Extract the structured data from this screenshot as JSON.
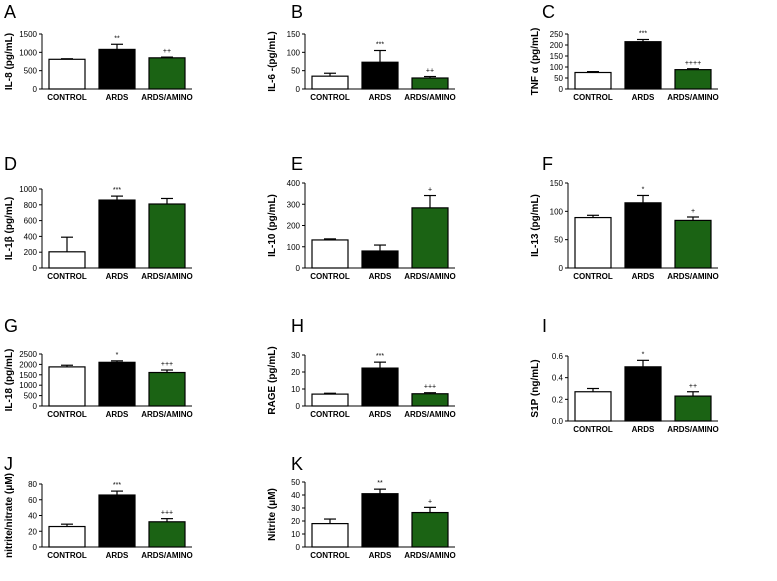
{
  "figure": {
    "title": ""
  },
  "colors": {
    "control": "#ffffff",
    "ards": "#000000",
    "amino": "#1b6314",
    "stroke": "#000000"
  },
  "chart_data": [
    {
      "type": "bar",
      "panel": "A",
      "title": "",
      "ylabel": "IL-8 (pg/mL)",
      "xlabel": "",
      "categories": [
        "CONTROL",
        "ARDS",
        "ARDS/AMINO"
      ],
      "values": [
        810,
        1080,
        850
      ],
      "errors": [
        15,
        140,
        20
      ],
      "significance": [
        "",
        "**",
        "++"
      ],
      "ylim": [
        0,
        1500
      ],
      "yticks": [
        0,
        500,
        1000,
        1500
      ],
      "ytick_labels": [
        "0",
        "500",
        "1000",
        "1500"
      ]
    },
    {
      "type": "bar",
      "panel": "B",
      "title": "",
      "ylabel": "IL-6 -(pg/mL)",
      "xlabel": "",
      "categories": [
        "CONTROL",
        "ARDS",
        "ARDS/AMINO"
      ],
      "values": [
        35,
        73,
        30
      ],
      "errors": [
        8,
        32,
        4
      ],
      "significance": [
        "",
        "***",
        "++"
      ],
      "ylim": [
        0,
        150
      ],
      "yticks": [
        0,
        50,
        100,
        150
      ],
      "ytick_labels": [
        "0",
        "50",
        "100",
        "150"
      ]
    },
    {
      "type": "bar",
      "panel": "C",
      "title": "",
      "ylabel": "TNF α (pg/mL)",
      "xlabel": "",
      "categories": [
        "CONTROL",
        "ARDS",
        "ARDS/AMINO"
      ],
      "values": [
        75,
        215,
        88
      ],
      "errors": [
        4,
        10,
        4
      ],
      "significance": [
        "",
        "***",
        "++++"
      ],
      "ylim": [
        0,
        250
      ],
      "yticks": [
        0,
        50,
        100,
        150,
        200,
        250
      ],
      "ytick_labels": [
        "0",
        "50",
        "100",
        "150",
        "200",
        "250"
      ]
    },
    {
      "type": "bar",
      "panel": "D",
      "title": "",
      "ylabel": "IL-1β (pg/mL)",
      "xlabel": "",
      "categories": [
        "CONTROL",
        "ARDS",
        "ARDS/AMINO"
      ],
      "values": [
        205,
        860,
        810
      ],
      "errors": [
        185,
        50,
        70
      ],
      "significance": [
        "",
        "***",
        ""
      ],
      "ylim": [
        0,
        1000
      ],
      "yticks": [
        0,
        200,
        400,
        600,
        800,
        1000
      ],
      "ytick_labels": [
        "0",
        "200",
        "400",
        "600",
        "800",
        "1000"
      ]
    },
    {
      "type": "bar",
      "panel": "E",
      "title": "",
      "ylabel": "IL-10 (pg/mL)",
      "xlabel": "",
      "categories": [
        "CONTROL",
        "ARDS",
        "ARDS/AMINO"
      ],
      "values": [
        132,
        80,
        283
      ],
      "errors": [
        5,
        28,
        58
      ],
      "significance": [
        "",
        "",
        "+"
      ],
      "ylim": [
        0,
        400
      ],
      "yticks": [
        0,
        100,
        200,
        300,
        400
      ],
      "ytick_labels": [
        "0",
        "100",
        "200",
        "300",
        "400"
      ]
    },
    {
      "type": "bar",
      "panel": "F",
      "title": "",
      "ylabel": "IL-13 (pg/mL)",
      "xlabel": "",
      "categories": [
        "CONTROL",
        "ARDS",
        "ARDS/AMINO"
      ],
      "values": [
        89,
        115,
        84
      ],
      "errors": [
        4,
        13,
        6
      ],
      "significance": [
        "",
        "*",
        "+"
      ],
      "ylim": [
        0,
        150
      ],
      "yticks": [
        0,
        50,
        100,
        150
      ],
      "ytick_labels": [
        "0",
        "50",
        "100",
        "150"
      ]
    },
    {
      "type": "bar",
      "panel": "G",
      "title": "",
      "ylabel": "IL-18 (pg/mL)",
      "xlabel": "",
      "categories": [
        "CONTROL",
        "ARDS",
        "ARDS/AMINO"
      ],
      "values": [
        1880,
        2100,
        1610
      ],
      "errors": [
        80,
        70,
        120
      ],
      "significance": [
        "",
        "*",
        "+++"
      ],
      "ylim": [
        0,
        2500
      ],
      "yticks": [
        0,
        500,
        1000,
        1500,
        2000,
        2500
      ],
      "ytick_labels": [
        "0",
        "500",
        "1000",
        "1500",
        "2000",
        "2500"
      ]
    },
    {
      "type": "bar",
      "panel": "H",
      "title": "",
      "ylabel": "RAGE (pg/mL)",
      "xlabel": "",
      "categories": [
        "CONTROL",
        "ARDS",
        "ARDS/AMINO"
      ],
      "values": [
        7,
        22.3,
        7.2
      ],
      "errors": [
        0.5,
        3.5,
        0.6
      ],
      "significance": [
        "",
        "***",
        "+++"
      ],
      "ylim": [
        0,
        30
      ],
      "yticks": [
        0,
        10,
        20,
        30
      ],
      "ytick_labels": [
        "0",
        "10",
        "20",
        "30"
      ]
    },
    {
      "type": "bar",
      "panel": "I",
      "title": "",
      "ylabel": "S1P (ng/mL)",
      "xlabel": "",
      "categories": [
        "CONTROL",
        "ARDS",
        "ARDS/AMINO"
      ],
      "values": [
        0.27,
        0.5,
        0.23
      ],
      "errors": [
        0.03,
        0.06,
        0.04
      ],
      "significance": [
        "",
        "*",
        "++"
      ],
      "ylim": [
        0,
        0.6
      ],
      "yticks": [
        0,
        0.2,
        0.4,
        0.6
      ],
      "ytick_labels": [
        "0.0",
        "0.2",
        "0.4",
        "0.6"
      ]
    },
    {
      "type": "bar",
      "panel": "J",
      "title": "",
      "ylabel": "nitrite/nitrate (μM)",
      "xlabel": "",
      "categories": [
        "CONTROL",
        "ARDS",
        "ARDS/AMINO"
      ],
      "values": [
        26,
        66,
        32
      ],
      "errors": [
        3,
        5,
        4
      ],
      "significance": [
        "",
        "***",
        "+++"
      ],
      "ylim": [
        0,
        80
      ],
      "yticks": [
        0,
        20,
        40,
        60,
        80
      ],
      "ytick_labels": [
        "0",
        "20",
        "40",
        "60",
        "80"
      ]
    },
    {
      "type": "bar",
      "panel": "K",
      "title": "",
      "ylabel": "Nitrite (μM)",
      "xlabel": "",
      "categories": [
        "CONTROL",
        "ARDS",
        "ARDS/AMINO"
      ],
      "values": [
        18,
        41,
        26.5
      ],
      "errors": [
        3.5,
        3.5,
        4
      ],
      "significance": [
        "",
        "**",
        "+"
      ],
      "ylim": [
        0,
        50
      ],
      "yticks": [
        0,
        10,
        20,
        30,
        40,
        50
      ],
      "ytick_labels": [
        "0",
        "10",
        "20",
        "30",
        "40",
        "50"
      ]
    }
  ]
}
